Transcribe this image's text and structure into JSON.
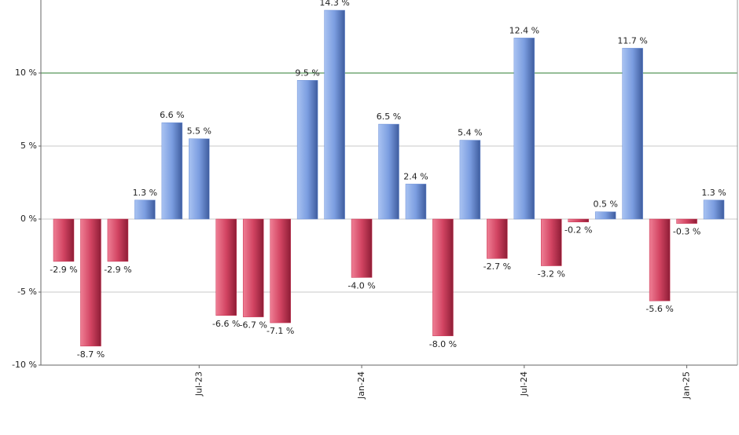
{
  "chart_data": {
    "type": "bar",
    "categories": [
      null,
      null,
      null,
      null,
      null,
      "Jul-23",
      null,
      null,
      null,
      null,
      null,
      "Jan-24",
      null,
      null,
      null,
      null,
      null,
      "Jul-24",
      null,
      null,
      null,
      null,
      null,
      "Jan-25",
      null
    ],
    "values": [
      -2.9,
      -8.7,
      -2.9,
      1.3,
      6.6,
      5.5,
      -6.6,
      -6.7,
      -7.1,
      9.5,
      14.3,
      -4.0,
      6.5,
      2.4,
      -8.0,
      5.4,
      -2.7,
      12.4,
      -3.2,
      -0.2,
      0.5,
      11.7,
      -5.6,
      -0.3,
      1.3
    ],
    "value_labels": [
      "-2.9 %",
      "-8.7 %",
      "-2.9 %",
      "1.3 %",
      "6.6 %",
      "5.5 %",
      "-6.6 %",
      "-6.7 %",
      "-7.1 %",
      "9.5 %",
      "14.3 %",
      "-4.0 %",
      "6.5 %",
      "2.4 %",
      "-8.0 %",
      "5.4 %",
      "-2.7 %",
      "12.4 %",
      "-3.2 %",
      "-0.2 %",
      "0.5 %",
      "11.7 %",
      "-5.6 %",
      "-0.3 %",
      "1.3 %"
    ],
    "positive_color": "#6f92d8",
    "negative_color": "#c8304f",
    "ylim": [
      -10,
      15
    ],
    "yticks": [
      {
        "value": -10,
        "label": "-10 %"
      },
      {
        "value": -5,
        "label": "-5 %"
      },
      {
        "value": 0,
        "label": "0 %"
      },
      {
        "value": 5,
        "label": "5 %"
      },
      {
        "value": 10,
        "label": "10 %"
      }
    ],
    "grid": true,
    "reference_line": {
      "value": 10,
      "color": "#2e7d32"
    }
  }
}
